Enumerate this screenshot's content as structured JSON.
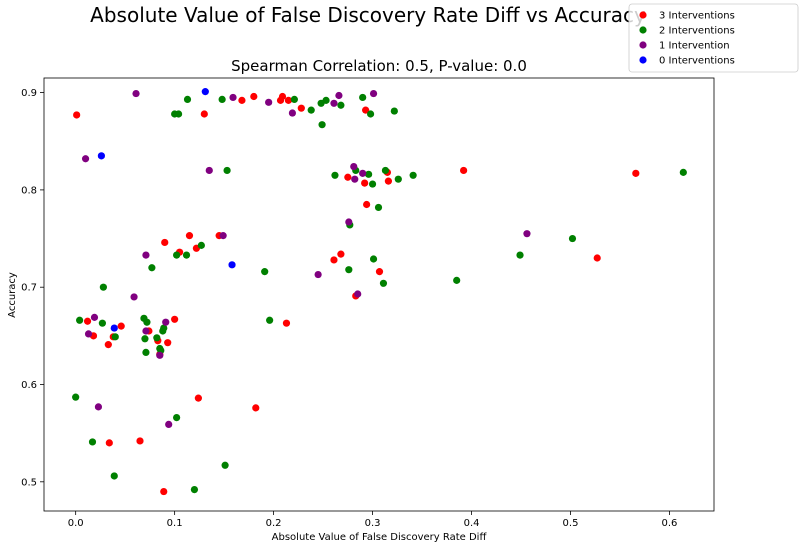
{
  "chart_data": {
    "type": "scatter",
    "suptitle": "Absolute Value of False Discovery Rate Diff vs Accuracy",
    "title": "Spearman Correlation: 0.5, P-value: 0.0",
    "xlabel": "Absolute Value of False Discovery Rate Diff",
    "ylabel": "Accuracy",
    "xlim": [
      -0.032,
      0.645
    ],
    "ylim": [
      0.47,
      0.915
    ],
    "xticks": [
      0.0,
      0.1,
      0.2,
      0.3,
      0.4,
      0.5,
      0.6
    ],
    "xtick_labels": [
      "0.0",
      "0.1",
      "0.2",
      "0.3",
      "0.4",
      "0.5",
      "0.6"
    ],
    "yticks": [
      0.5,
      0.6,
      0.7,
      0.8,
      0.9
    ],
    "ytick_labels": [
      "0.5",
      "0.6",
      "0.7",
      "0.8",
      "0.9"
    ],
    "grid": false,
    "legend_position": "top-right",
    "series": [
      {
        "name": "3 Interventions",
        "color": "#ff0000",
        "points": [
          [
            0.001,
            0.877
          ],
          [
            0.012,
            0.665
          ],
          [
            0.018,
            0.65
          ],
          [
            0.033,
            0.641
          ],
          [
            0.038,
            0.649
          ],
          [
            0.046,
            0.66
          ],
          [
            0.034,
            0.54
          ],
          [
            0.065,
            0.542
          ],
          [
            0.074,
            0.655
          ],
          [
            0.083,
            0.645
          ],
          [
            0.085,
            0.631
          ],
          [
            0.089,
            0.49
          ],
          [
            0.09,
            0.746
          ],
          [
            0.093,
            0.643
          ],
          [
            0.1,
            0.667
          ],
          [
            0.105,
            0.736
          ],
          [
            0.115,
            0.753
          ],
          [
            0.122,
            0.74
          ],
          [
            0.124,
            0.586
          ],
          [
            0.13,
            0.878
          ],
          [
            0.145,
            0.753
          ],
          [
            0.168,
            0.892
          ],
          [
            0.18,
            0.896
          ],
          [
            0.182,
            0.576
          ],
          [
            0.207,
            0.892
          ],
          [
            0.209,
            0.896
          ],
          [
            0.213,
            0.663
          ],
          [
            0.215,
            0.892
          ],
          [
            0.228,
            0.884
          ],
          [
            0.261,
            0.728
          ],
          [
            0.268,
            0.734
          ],
          [
            0.275,
            0.813
          ],
          [
            0.283,
            0.691
          ],
          [
            0.292,
            0.807
          ],
          [
            0.293,
            0.882
          ],
          [
            0.294,
            0.785
          ],
          [
            0.307,
            0.716
          ],
          [
            0.315,
            0.818
          ],
          [
            0.316,
            0.809
          ],
          [
            0.392,
            0.82
          ],
          [
            0.527,
            0.73
          ],
          [
            0.566,
            0.817
          ]
        ]
      },
      {
        "name": "2 Interventions",
        "color": "#008000",
        "points": [
          [
            0.0,
            0.587
          ],
          [
            0.004,
            0.666
          ],
          [
            0.017,
            0.541
          ],
          [
            0.027,
            0.663
          ],
          [
            0.028,
            0.7
          ],
          [
            0.039,
            0.506
          ],
          [
            0.04,
            0.649
          ],
          [
            0.069,
            0.668
          ],
          [
            0.07,
            0.647
          ],
          [
            0.071,
            0.633
          ],
          [
            0.072,
            0.664
          ],
          [
            0.077,
            0.72
          ],
          [
            0.082,
            0.648
          ],
          [
            0.085,
            0.637
          ],
          [
            0.086,
            0.635
          ],
          [
            0.088,
            0.655
          ],
          [
            0.089,
            0.658
          ],
          [
            0.1,
            0.878
          ],
          [
            0.102,
            0.733
          ],
          [
            0.102,
            0.566
          ],
          [
            0.104,
            0.878
          ],
          [
            0.112,
            0.733
          ],
          [
            0.113,
            0.893
          ],
          [
            0.12,
            0.492
          ],
          [
            0.127,
            0.743
          ],
          [
            0.148,
            0.893
          ],
          [
            0.151,
            0.517
          ],
          [
            0.153,
            0.82
          ],
          [
            0.191,
            0.716
          ],
          [
            0.196,
            0.666
          ],
          [
            0.221,
            0.893
          ],
          [
            0.238,
            0.882
          ],
          [
            0.248,
            0.889
          ],
          [
            0.249,
            0.867
          ],
          [
            0.253,
            0.892
          ],
          [
            0.262,
            0.815
          ],
          [
            0.268,
            0.887
          ],
          [
            0.276,
            0.718
          ],
          [
            0.277,
            0.764
          ],
          [
            0.283,
            0.82
          ],
          [
            0.29,
            0.895
          ],
          [
            0.296,
            0.816
          ],
          [
            0.298,
            0.878
          ],
          [
            0.301,
            0.729
          ],
          [
            0.3,
            0.806
          ],
          [
            0.306,
            0.782
          ],
          [
            0.311,
            0.704
          ],
          [
            0.313,
            0.82
          ],
          [
            0.322,
            0.881
          ],
          [
            0.326,
            0.811
          ],
          [
            0.341,
            0.815
          ],
          [
            0.385,
            0.707
          ],
          [
            0.449,
            0.733
          ],
          [
            0.502,
            0.75
          ],
          [
            0.614,
            0.818
          ]
        ]
      },
      {
        "name": "1 Intervention",
        "color": "#800080",
        "points": [
          [
            0.01,
            0.832
          ],
          [
            0.013,
            0.652
          ],
          [
            0.019,
            0.669
          ],
          [
            0.023,
            0.577
          ],
          [
            0.059,
            0.69
          ],
          [
            0.061,
            0.899
          ],
          [
            0.071,
            0.733
          ],
          [
            0.071,
            0.655
          ],
          [
            0.085,
            0.63
          ],
          [
            0.091,
            0.664
          ],
          [
            0.094,
            0.559
          ],
          [
            0.135,
            0.82
          ],
          [
            0.149,
            0.753
          ],
          [
            0.159,
            0.895
          ],
          [
            0.195,
            0.89
          ],
          [
            0.219,
            0.879
          ],
          [
            0.245,
            0.713
          ],
          [
            0.261,
            0.889
          ],
          [
            0.266,
            0.897
          ],
          [
            0.276,
            0.767
          ],
          [
            0.281,
            0.824
          ],
          [
            0.282,
            0.811
          ],
          [
            0.285,
            0.693
          ],
          [
            0.29,
            0.817
          ],
          [
            0.301,
            0.899
          ],
          [
            0.456,
            0.755
          ]
        ]
      },
      {
        "name": "0 Interventions",
        "color": "#0000ff",
        "points": [
          [
            0.026,
            0.835
          ],
          [
            0.039,
            0.658
          ],
          [
            0.131,
            0.901
          ],
          [
            0.158,
            0.723
          ]
        ]
      }
    ]
  }
}
